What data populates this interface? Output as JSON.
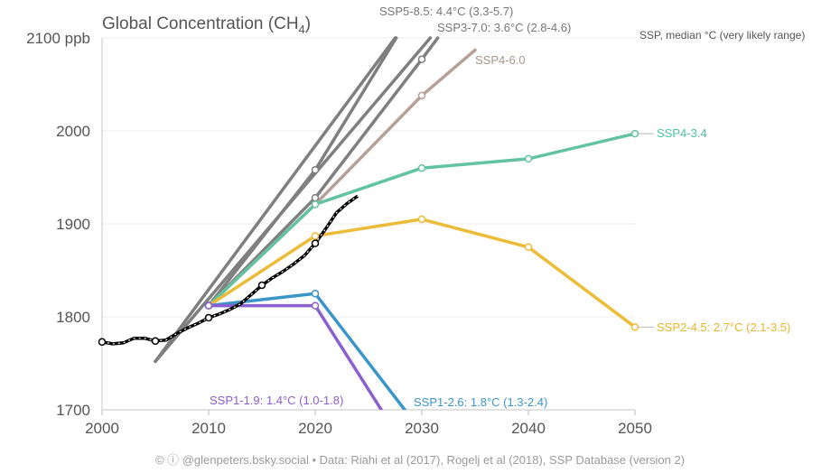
{
  "chart_data": {
    "type": "line",
    "title": "Global Concentration (CH",
    "title_subscript": "4",
    "title_suffix": ")",
    "note": "SSP, median °C (very likely range)",
    "footer": "Ⓒⓘⓐⓐglenpeters.bsky.social  •  Data: Riahi et al (2017), Rogelj et al (2018), SSP Database (version 2)",
    "footer_display": "© ⓘ @glenpeters.bsky.social  •  Data: Riahi et al (2017), Rogelj et al (2018), SSP Database (version 2)",
    "xlim": [
      2000,
      2050
    ],
    "ylim": [
      1700,
      2100
    ],
    "x_ticks": [
      2000,
      2010,
      2020,
      2030,
      2040,
      2050
    ],
    "y_ticks": [
      {
        "value": 1700,
        "label": "1700"
      },
      {
        "value": 1800,
        "label": "1800"
      },
      {
        "value": 1900,
        "label": "1900"
      },
      {
        "value": 2000,
        "label": "2000"
      },
      {
        "value": 2100,
        "label": "2100 ppb"
      }
    ],
    "grid": true,
    "historical": {
      "color": "#000000",
      "points": [
        [
          2000,
          1773
        ],
        [
          2001,
          1771
        ],
        [
          2002,
          1772
        ],
        [
          2003,
          1777
        ],
        [
          2004,
          1777
        ],
        [
          2005,
          1774
        ],
        [
          2006,
          1775
        ],
        [
          2007,
          1782
        ],
        [
          2008,
          1788
        ],
        [
          2009,
          1793
        ],
        [
          2010,
          1799
        ],
        [
          2011,
          1803
        ],
        [
          2012,
          1808
        ],
        [
          2013,
          1814
        ],
        [
          2014,
          1824
        ],
        [
          2015,
          1834
        ],
        [
          2016,
          1842
        ],
        [
          2017,
          1849
        ],
        [
          2018,
          1857
        ],
        [
          2019,
          1866
        ],
        [
          2020,
          1879
        ],
        [
          2021,
          1895
        ],
        [
          2022,
          1912
        ],
        [
          2023,
          1922
        ],
        [
          2024,
          1930
        ]
      ],
      "markers": [
        2000,
        2005,
        2010,
        2015,
        2020
      ]
    },
    "projection_lines": [
      {
        "color": "#7f7f7f",
        "start": [
          2005,
          1752
        ],
        "end": [
          2027.5,
          2100
        ]
      },
      {
        "color": "#7f7f7f",
        "start": [
          2005,
          1752
        ],
        "end": [
          2030.8,
          2100
        ]
      }
    ],
    "series": [
      {
        "id": "ssp585",
        "label": "SSP5-8.5: 4.4°C (3.3-5.7)",
        "color": "#7f7f7f",
        "label_color": "#777777",
        "points": [
          [
            2010,
            1812
          ],
          [
            2020,
            1958
          ],
          [
            2027.6,
            2100
          ]
        ],
        "markers": [
          2010,
          2020
        ]
      },
      {
        "id": "ssp370",
        "label": "SSP3-7.0: 3.6°C (2.8-4.6)",
        "color": "#7f7f7f",
        "label_color": "#777777",
        "points": [
          [
            2010,
            1812
          ],
          [
            2020,
            1928
          ],
          [
            2030,
            2077
          ],
          [
            2031.5,
            2100
          ]
        ],
        "markers": [
          2010,
          2020,
          2030
        ]
      },
      {
        "id": "ssp460",
        "label": "SSP4-6.0",
        "color": "#b5a195",
        "label_color": "#a8968a",
        "points": [
          [
            2010,
            1812
          ],
          [
            2020,
            1921
          ],
          [
            2030,
            2038
          ],
          [
            2035,
            2087
          ]
        ],
        "markers": [
          2010,
          2020,
          2030
        ]
      },
      {
        "id": "ssp434",
        "label": "SSP4-3.4",
        "color": "#62c3a3",
        "label_color": "#4ec39f",
        "points": [
          [
            2010,
            1812
          ],
          [
            2020,
            1921
          ],
          [
            2030,
            1960
          ],
          [
            2040,
            1970
          ],
          [
            2050,
            1997
          ]
        ],
        "markers": [
          2010,
          2020,
          2030,
          2040,
          2050
        ]
      },
      {
        "id": "ssp245",
        "label": "SSP2-4.5: 2.7°C (2.1-3.5)",
        "color": "#ecbc38",
        "label_color": "#e8b52c",
        "points": [
          [
            2010,
            1812
          ],
          [
            2020,
            1887
          ],
          [
            2030,
            1905
          ],
          [
            2040,
            1875
          ],
          [
            2050,
            1789
          ]
        ],
        "markers": [
          2010,
          2020,
          2030,
          2040,
          2050
        ]
      },
      {
        "id": "ssp126",
        "label": "SSP1-2.6: 1.8°C (1.3-2.4)",
        "color": "#3a96c8",
        "label_color": "#3a96c8",
        "points": [
          [
            2010,
            1812
          ],
          [
            2020,
            1825
          ],
          [
            2028.4,
            1700
          ]
        ],
        "markers": [
          2010,
          2020
        ]
      },
      {
        "id": "ssp119",
        "label": "SSP1-1.9: 1.4°C (1.0-1.8)",
        "color": "#8a5fcf",
        "label_color": "#8a5fcf",
        "points": [
          [
            2010,
            1812
          ],
          [
            2020,
            1812
          ],
          [
            2026.2,
            1700
          ]
        ],
        "markers": [
          2010,
          2020
        ]
      }
    ]
  }
}
